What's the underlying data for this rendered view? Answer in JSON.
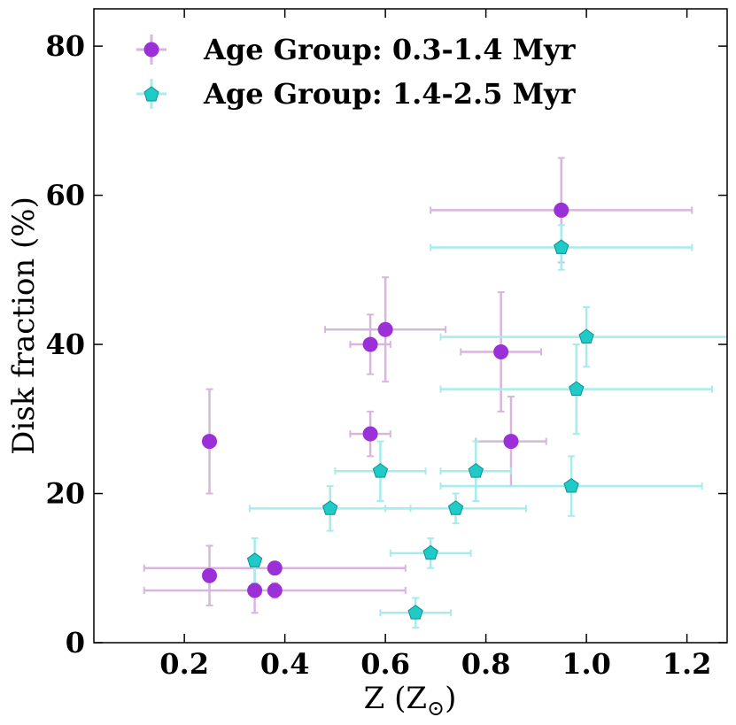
{
  "chart_data": {
    "type": "scatter",
    "xlabel": "Z (Z",
    "xlabel_sub": "⊙",
    "xlabel_close": ")",
    "ylabel": "Disk fraction (%)",
    "xlim": [
      0.02,
      1.28
    ],
    "ylim": [
      0,
      85
    ],
    "xticks": [
      0.2,
      0.4,
      0.6,
      0.8,
      1.0,
      1.2
    ],
    "xtick_labels": [
      "0.2",
      "0.4",
      "0.6",
      "0.8",
      "1.0",
      "1.2"
    ],
    "yticks": [
      0,
      20,
      40,
      60,
      80
    ],
    "ytick_labels": [
      "0",
      "20",
      "40",
      "60",
      "80"
    ],
    "grid": false,
    "legend_position": "top-left",
    "series": [
      {
        "name": "Age Group: 0.3-1.4 Myr",
        "marker": "circle",
        "color": "#9b30d9",
        "errcolor": "#d7b6dc",
        "points": [
          {
            "x": 0.25,
            "y": 27,
            "xerr": [
              0,
              0
            ],
            "yerr": [
              7,
              7
            ]
          },
          {
            "x": 0.25,
            "y": 9,
            "xerr": [
              0,
              0
            ],
            "yerr": [
              4,
              4
            ]
          },
          {
            "x": 0.34,
            "y": 7,
            "xerr": [
              0,
              0
            ],
            "yerr": [
              3,
              3
            ]
          },
          {
            "x": 0.38,
            "y": 10,
            "xerr": [
              0.26,
              0.26
            ],
            "yerr": [
              0,
              0
            ]
          },
          {
            "x": 0.38,
            "y": 7,
            "xerr": [
              0.26,
              0.26
            ],
            "yerr": [
              1,
              1
            ]
          },
          {
            "x": 0.57,
            "y": 40,
            "xerr": [
              0.04,
              0.04
            ],
            "yerr": [
              4,
              4
            ]
          },
          {
            "x": 0.57,
            "y": 28,
            "xerr": [
              0.04,
              0.04
            ],
            "yerr": [
              3,
              3
            ]
          },
          {
            "x": 0.6,
            "y": 42,
            "xerr": [
              0.12,
              0.12
            ],
            "yerr": [
              7,
              7
            ]
          },
          {
            "x": 0.83,
            "y": 39,
            "xerr": [
              0.08,
              0.08
            ],
            "yerr": [
              8,
              8
            ]
          },
          {
            "x": 0.85,
            "y": 27,
            "xerr": [
              0.07,
              0.07
            ],
            "yerr": [
              6,
              6
            ]
          },
          {
            "x": 0.95,
            "y": 58,
            "xerr": [
              0.26,
              0.26
            ],
            "yerr": [
              7,
              7
            ]
          }
        ]
      },
      {
        "name": "Age Group: 1.4-2.5 Myr",
        "marker": "pentagon",
        "color": "#1ecbc9",
        "errcolor": "#a6ecec",
        "points": [
          {
            "x": 0.34,
            "y": 11,
            "xerr": [
              0,
              0
            ],
            "yerr": [
              3,
              3
            ]
          },
          {
            "x": 0.49,
            "y": 18,
            "xerr": [
              0.16,
              0.16
            ],
            "yerr": [
              3,
              3
            ]
          },
          {
            "x": 0.59,
            "y": 23,
            "xerr": [
              0.09,
              0.09
            ],
            "yerr": [
              4,
              4
            ]
          },
          {
            "x": 0.66,
            "y": 4,
            "xerr": [
              0.07,
              0.07
            ],
            "yerr": [
              2,
              2
            ]
          },
          {
            "x": 0.69,
            "y": 12,
            "xerr": [
              0.08,
              0.08
            ],
            "yerr": [
              2,
              2
            ]
          },
          {
            "x": 0.74,
            "y": 18,
            "xerr": [
              0.14,
              0.14
            ],
            "yerr": [
              2,
              2
            ]
          },
          {
            "x": 0.78,
            "y": 23,
            "xerr": [
              0.07,
              0.07
            ],
            "yerr": [
              4,
              4
            ]
          },
          {
            "x": 0.95,
            "y": 53,
            "xerr": [
              0.26,
              0.26
            ],
            "yerr": [
              3,
              3
            ]
          },
          {
            "x": 0.97,
            "y": 21,
            "xerr": [
              0.26,
              0.26
            ],
            "yerr": [
              4,
              4
            ]
          },
          {
            "x": 0.98,
            "y": 34,
            "xerr": [
              0.27,
              0.27
            ],
            "yerr": [
              6,
              6
            ]
          },
          {
            "x": 1.0,
            "y": 41,
            "xerr": [
              0.29,
              0.29
            ],
            "yerr": [
              4,
              4
            ]
          }
        ]
      }
    ]
  }
}
